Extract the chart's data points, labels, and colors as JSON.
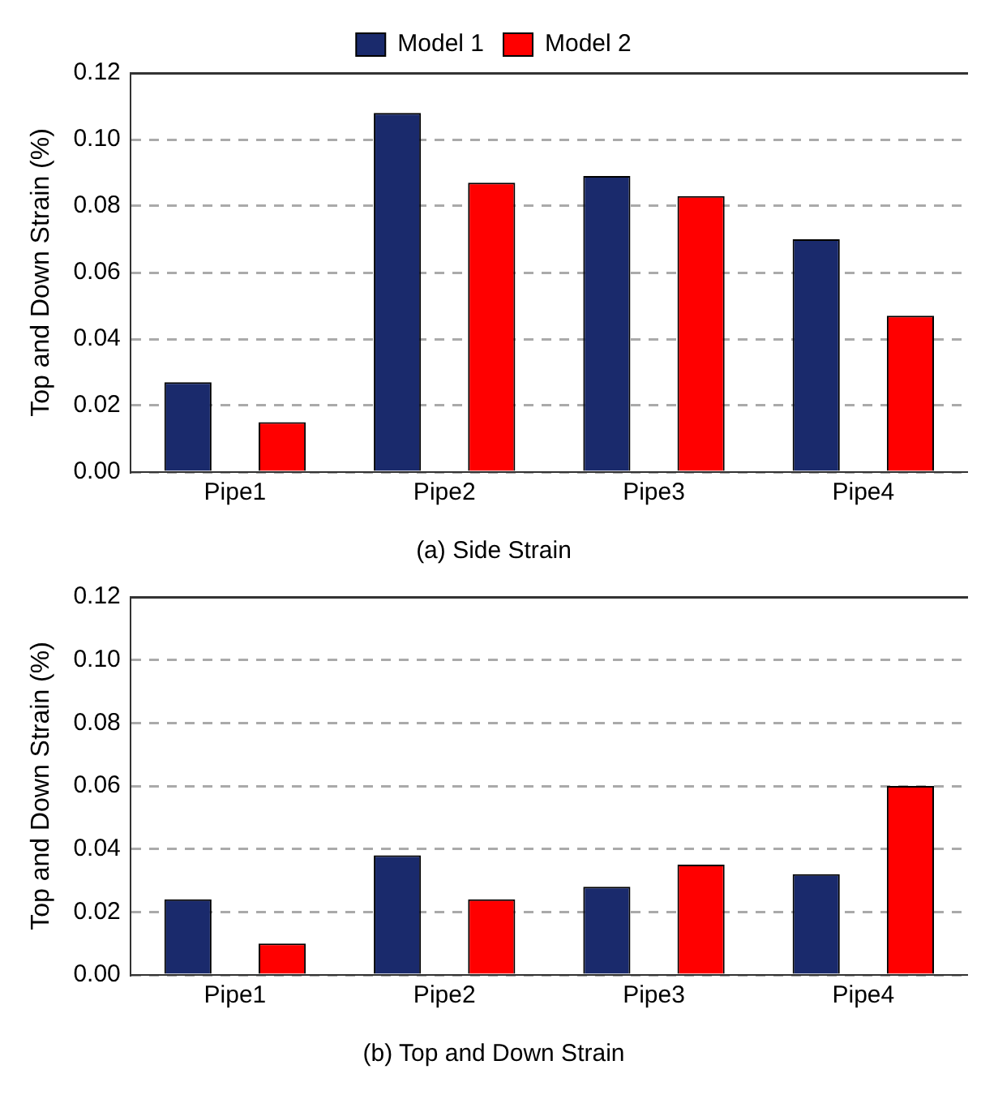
{
  "chart_data": [
    {
      "type": "bar",
      "title": "(a) Side Strain",
      "ylabel": "Top and Down Strain (%)",
      "categories": [
        "Pipe1",
        "Pipe2",
        "Pipe3",
        "Pipe4"
      ],
      "series": [
        {
          "name": "Model 1",
          "color": "#1a2a6c",
          "values": [
            0.027,
            0.108,
            0.089,
            0.07
          ]
        },
        {
          "name": "Model 2",
          "color": "#ff0000",
          "values": [
            0.015,
            0.087,
            0.083,
            0.047
          ]
        }
      ],
      "ylim": [
        0,
        0.12
      ],
      "yticks": [
        {
          "value": 0,
          "label": "0.00"
        },
        {
          "value": 0.02,
          "label": "0.02"
        },
        {
          "value": 0.04,
          "label": "0.04"
        },
        {
          "value": 0.06,
          "label": "0.06"
        },
        {
          "value": 0.08,
          "label": "0.08"
        },
        {
          "value": 0.1,
          "label": "0.10"
        },
        {
          "value": 0.12,
          "label": "0.12"
        }
      ],
      "grid": "y",
      "legend": "top"
    },
    {
      "type": "bar",
      "title": "(b) Top and Down Strain",
      "ylabel": "Top and Down Strain (%)",
      "categories": [
        "Pipe1",
        "Pipe2",
        "Pipe3",
        "Pipe4"
      ],
      "series": [
        {
          "color": "#1a2a6c",
          "values": [
            0.024,
            0.038,
            0.028,
            0.032
          ]
        },
        {
          "color": "#ff0000",
          "values": [
            0.01,
            0.024,
            0.035,
            0.06
          ]
        }
      ],
      "ylim": [
        0,
        0.12
      ],
      "yticks": [
        {
          "value": 0,
          "label": "0.00"
        },
        {
          "value": 0.02,
          "label": "0.02"
        },
        {
          "value": 0.04,
          "label": "0.04"
        },
        {
          "value": 0.06,
          "label": "0.06"
        },
        {
          "value": 0.08,
          "label": "0.08"
        },
        {
          "value": 0.1,
          "label": "0.10"
        },
        {
          "value": 0.12,
          "label": "0.12"
        }
      ],
      "grid": "y"
    }
  ]
}
